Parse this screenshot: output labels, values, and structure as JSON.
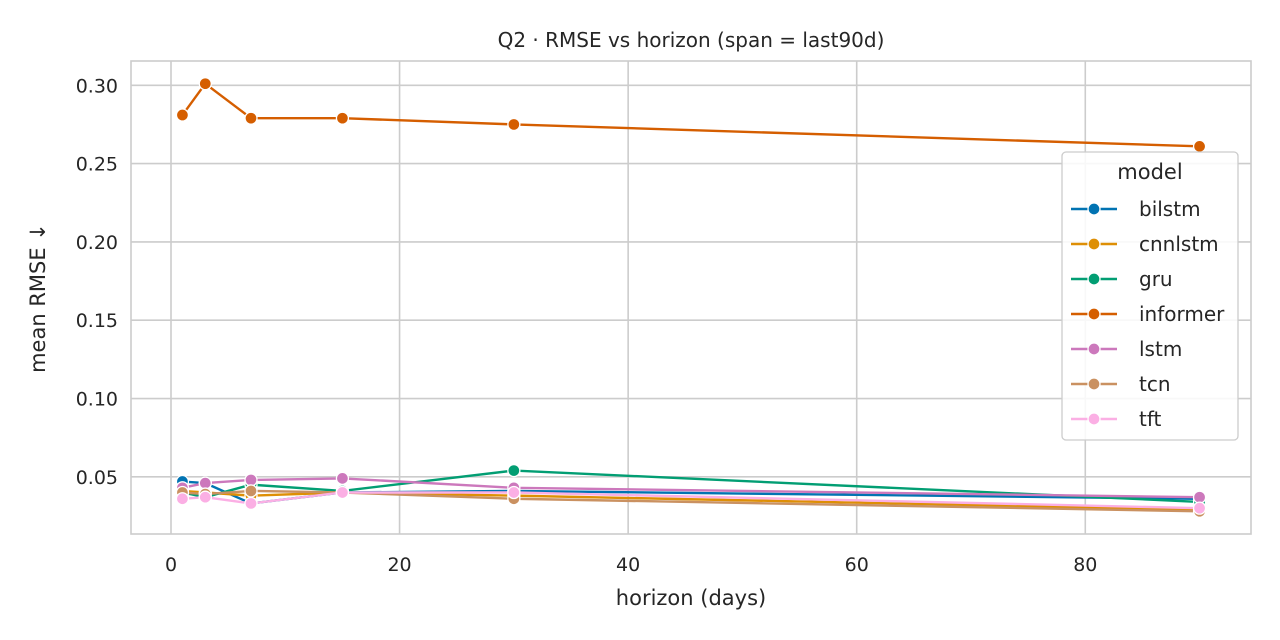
{
  "chart_data": {
    "type": "line",
    "title": "Q2 · RMSE vs horizon  (span = last90d)",
    "xlabel": "horizon (days)",
    "ylabel": "mean RMSE ↓",
    "xlim": [
      -3.5,
      94.5
    ],
    "ylim": [
      0.0135,
      0.3155
    ],
    "xticks": [
      0,
      20,
      40,
      60,
      80
    ],
    "xtick_labels": [
      "0",
      "20",
      "40",
      "60",
      "80"
    ],
    "yticks": [
      0.05,
      0.1,
      0.15,
      0.2,
      0.25,
      0.3
    ],
    "ytick_labels": [
      "0.05",
      "0.10",
      "0.15",
      "0.20",
      "0.25",
      "0.30"
    ],
    "grid": true,
    "legend": {
      "title": "model",
      "placement": "right"
    },
    "x": [
      1,
      3,
      7,
      15,
      30,
      90
    ],
    "series": [
      {
        "name": "bilstm",
        "color": "#0173b2",
        "values": [
          0.047,
          0.046,
          0.033,
          0.04,
          0.041,
          0.036
        ]
      },
      {
        "name": "cnnlstm",
        "color": "#de8f05",
        "values": [
          0.041,
          0.04,
          0.038,
          0.04,
          0.038,
          0.029
        ]
      },
      {
        "name": "gru",
        "color": "#029e73",
        "values": [
          0.04,
          0.037,
          0.045,
          0.041,
          0.054,
          0.034
        ]
      },
      {
        "name": "informer",
        "color": "#d55e00",
        "values": [
          0.281,
          0.301,
          0.279,
          0.279,
          0.275,
          0.261
        ]
      },
      {
        "name": "lstm",
        "color": "#cc78bc",
        "values": [
          0.043,
          0.046,
          0.048,
          0.049,
          0.043,
          0.037
        ]
      },
      {
        "name": "tcn",
        "color": "#ca9161",
        "values": [
          0.04,
          0.039,
          0.041,
          0.04,
          0.036,
          0.028
        ]
      },
      {
        "name": "tft",
        "color": "#fbafe4",
        "values": [
          0.036,
          0.037,
          0.033,
          0.04,
          0.04,
          0.03
        ]
      }
    ]
  }
}
